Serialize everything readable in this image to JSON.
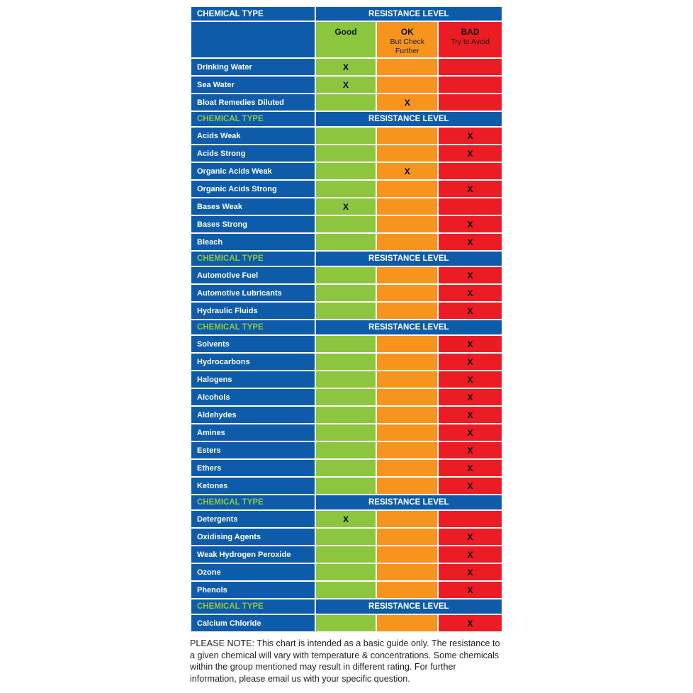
{
  "colors": {
    "blue": "#0e5ca9",
    "green": "#8cc63f",
    "orange": "#f7941d",
    "red": "#ec1c24",
    "section_label_green": "#8dc63f",
    "header_text": "#ffffff",
    "mark_text": "#000000"
  },
  "chart_data": {
    "type": "table",
    "mark": "X",
    "header": {
      "chemical_type": "CHEMICAL TYPE",
      "resistance_level": "RESISTANCE LEVEL"
    },
    "section_header": {
      "chemical_type": "CHEMICAL TYPE",
      "resistance_level": "RESISTANCE LEVEL"
    },
    "rating_columns": [
      {
        "key": "good",
        "title": "Good",
        "subtitle": "",
        "color": "#8cc63f"
      },
      {
        "key": "ok",
        "title": "OK",
        "subtitle": "But Check Further",
        "color": "#f7941d"
      },
      {
        "key": "bad",
        "title": "BAD",
        "subtitle": "Try to Avoid",
        "color": "#ec1c24"
      }
    ],
    "sections": [
      {
        "show_header": false,
        "rows": [
          {
            "name": "Drinking Water",
            "rating": "good"
          },
          {
            "name": "Sea Water",
            "rating": "good"
          },
          {
            "name": "Bloat Remedies Diluted",
            "rating": "ok"
          }
        ]
      },
      {
        "show_header": true,
        "rows": [
          {
            "name": "Acids Weak",
            "rating": "bad"
          },
          {
            "name": "Acids Strong",
            "rating": "bad"
          },
          {
            "name": "Organic Acids Weak",
            "rating": "ok"
          },
          {
            "name": "Organic Acids Strong",
            "rating": "bad"
          },
          {
            "name": "Bases Weak",
            "rating": "good"
          },
          {
            "name": "Bases Strong",
            "rating": "bad"
          },
          {
            "name": "Bleach",
            "rating": "bad"
          }
        ]
      },
      {
        "show_header": true,
        "rows": [
          {
            "name": "Automotive Fuel",
            "rating": "bad"
          },
          {
            "name": "Automotive Lubricants",
            "rating": "bad"
          },
          {
            "name": "Hydraulic Fluids",
            "rating": "bad"
          }
        ]
      },
      {
        "show_header": true,
        "rows": [
          {
            "name": "Solvents",
            "rating": "bad"
          },
          {
            "name": "Hydrocarbons",
            "rating": "bad"
          },
          {
            "name": "Halogens",
            "rating": "bad"
          },
          {
            "name": "Alcohols",
            "rating": "bad"
          },
          {
            "name": "Aldehydes",
            "rating": "bad"
          },
          {
            "name": "Amines",
            "rating": "bad"
          },
          {
            "name": "Esters",
            "rating": "bad"
          },
          {
            "name": "Ethers",
            "rating": "bad"
          },
          {
            "name": "Ketones",
            "rating": "bad"
          }
        ]
      },
      {
        "show_header": true,
        "rows": [
          {
            "name": "Detergents",
            "rating": "good"
          },
          {
            "name": "Oxidising Agents",
            "rating": "bad"
          },
          {
            "name": "Weak Hydrogen Peroxide",
            "rating": "bad"
          },
          {
            "name": "Ozone",
            "rating": "bad"
          },
          {
            "name": "Phenols",
            "rating": "bad"
          }
        ]
      },
      {
        "show_header": true,
        "rows": [
          {
            "name": "Calcium Chloride",
            "rating": "bad"
          }
        ]
      }
    ]
  },
  "note": "PLEASE NOTE: This chart is intended as a basic guide only. The resistance to a given chemical will vary with temperature & concentrations. Some chemicals within the group mentioned may result in different rating. For further information, please email us with your specific question."
}
